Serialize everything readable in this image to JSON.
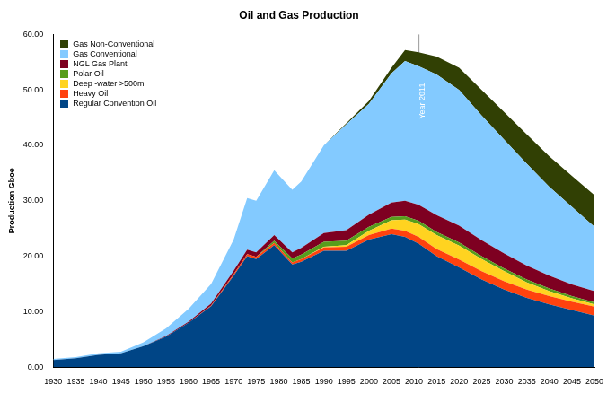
{
  "chart_data": {
    "type": "area",
    "title": "Oil and Gas Production",
    "y_label": "Production Gboe",
    "stacked": true,
    "grid": false,
    "legend": "upper left",
    "x": [
      1930,
      1935,
      1940,
      1945,
      1950,
      1955,
      1960,
      1965,
      1970,
      1973,
      1975,
      1979,
      1983,
      1985,
      1990,
      1995,
      2000,
      2005,
      2008,
      2011,
      2015,
      2020,
      2025,
      2030,
      2035,
      2040,
      2045,
      2050
    ],
    "xlim": [
      1930,
      2050
    ],
    "xticks": [
      1930,
      1935,
      1940,
      1945,
      1950,
      1955,
      1960,
      1965,
      1970,
      1975,
      1980,
      1985,
      1990,
      1995,
      2000,
      2005,
      2010,
      2015,
      2020,
      2025,
      2030,
      2035,
      2040,
      2045,
      2050
    ],
    "ylim": [
      0,
      60
    ],
    "yticks": [
      {
        "value": 0,
        "label": "0.00"
      },
      {
        "value": 10,
        "label": "10.00"
      },
      {
        "value": 20,
        "label": "20.00"
      },
      {
        "value": 30,
        "label": "30.00"
      },
      {
        "value": 40,
        "label": "40.00"
      },
      {
        "value": 50,
        "label": "50.00"
      },
      {
        "value": 60,
        "label": "60.00"
      }
    ],
    "annotations": [
      {
        "text": "Year 2011",
        "x": 2011
      }
    ],
    "series": [
      {
        "name": "Regular Convention Oil",
        "color": "#004586",
        "values": [
          1.3,
          1.6,
          2.2,
          2.5,
          3.8,
          5.5,
          8,
          11,
          16.5,
          20,
          19.5,
          22,
          18.5,
          19,
          21,
          21,
          23,
          24,
          23.5,
          22.3,
          20,
          18,
          15.8,
          14,
          12.5,
          11.3,
          10.3,
          9.3
        ]
      },
      {
        "name": "Heavy Oil",
        "color": "#ff420e",
        "values": [
          0,
          0,
          0,
          0,
          0,
          0,
          0,
          0.1,
          0.3,
          0.4,
          0.4,
          0.4,
          0.4,
          0.5,
          0.6,
          0.7,
          0.8,
          1.0,
          1.1,
          1.2,
          1.3,
          1.4,
          1.5,
          1.5,
          1.5,
          1.5,
          1.5,
          1.6
        ]
      },
      {
        "name": "Deep -water >500m",
        "color": "#ffd320",
        "values": [
          0,
          0,
          0,
          0,
          0,
          0,
          0,
          0,
          0,
          0,
          0,
          0,
          0,
          0,
          0.1,
          0.3,
          0.8,
          1.5,
          2.0,
          2.3,
          2.5,
          2.5,
          2.2,
          1.8,
          1.3,
          0.9,
          0.6,
          0.4
        ]
      },
      {
        "name": "Polar Oil",
        "color": "#579d1c",
        "values": [
          0,
          0,
          0,
          0,
          0,
          0,
          0,
          0,
          0,
          0,
          0,
          0.4,
          0.7,
          0.8,
          0.9,
          0.8,
          0.7,
          0.6,
          0.6,
          0.6,
          0.6,
          0.6,
          0.5,
          0.5,
          0.5,
          0.5,
          0.4,
          0.4
        ]
      },
      {
        "name": "NGL Gas Plant",
        "color": "#7e0021",
        "values": [
          0,
          0,
          0,
          0,
          0,
          0.1,
          0.2,
          0.4,
          0.6,
          0.8,
          0.8,
          1.0,
          1.1,
          1.2,
          1.6,
          1.9,
          2.2,
          2.6,
          2.8,
          2.9,
          3.0,
          3.0,
          2.9,
          2.7,
          2.5,
          2.3,
          2.1,
          2.0
        ]
      },
      {
        "name": "Gas Conventional",
        "color": "#83caff",
        "values": [
          0.2,
          0.2,
          0.3,
          0.3,
          0.7,
          1.4,
          2.3,
          3.5,
          5.6,
          9.3,
          9.3,
          11.7,
          11.3,
          12.0,
          15.8,
          19.1,
          20.0,
          23.3,
          25.2,
          25.0,
          25.4,
          24.5,
          22.5,
          20.5,
          18.4,
          16.0,
          14.0,
          11.6
        ]
      },
      {
        "name": "Gas Non-Conventional",
        "color": "#314004",
        "values": [
          0,
          0,
          0,
          0,
          0,
          0,
          0,
          0,
          0,
          0,
          0,
          0,
          0,
          0,
          0,
          0.2,
          0.5,
          1.0,
          2.0,
          2.5,
          3.2,
          4.0,
          4.6,
          5.0,
          5.3,
          5.5,
          5.6,
          5.7
        ]
      }
    ]
  }
}
